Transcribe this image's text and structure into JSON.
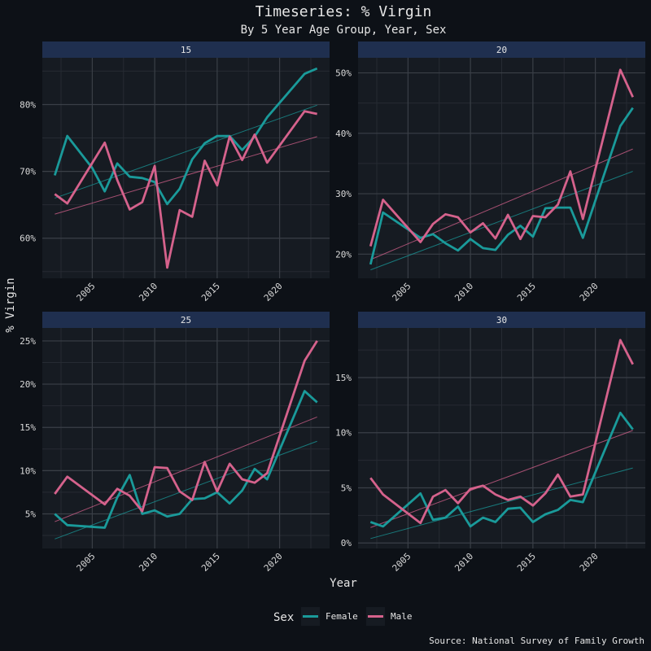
{
  "title": "Timeseries: % Virgin",
  "subtitle": "By 5 Year Age Group, Year, Sex",
  "caption": "Source: National Survey of Family Growth",
  "colors": {
    "background": "#0d1117",
    "panel": "#161b22",
    "strip": "#1f2f4f",
    "grid_major": "#3a3f47",
    "grid_minor": "#262b33",
    "female": "#1a9a9a",
    "male": "#d5628c"
  },
  "legend": {
    "title": "Sex",
    "items": [
      {
        "label": "Female",
        "color": "#1a9a9a"
      },
      {
        "label": "Male",
        "color": "#d5628c"
      }
    ]
  },
  "chart_data": {
    "type": "line",
    "xlabel": "Year",
    "ylabel": "% Virgin",
    "x_ticks": [
      2005,
      2010,
      2015,
      2020
    ],
    "x_range": [
      2001,
      2024
    ],
    "trend_lines": true,
    "legend_position": "bottom",
    "panels": [
      {
        "label": "15",
        "ylim": [
          54,
          87
        ],
        "y_ticks": [
          60,
          70,
          80
        ],
        "y_tick_labels": [
          "60%",
          "70%",
          "80%"
        ],
        "series": [
          {
            "name": "Female",
            "x": [
              2002,
              2003,
              2005,
              2006,
              2007,
              2008,
              2009,
              2010,
              2011,
              2012,
              2013,
              2014,
              2015,
              2016,
              2017,
              2018,
              2019,
              2022,
              2023
            ],
            "y": [
              69.4,
              75.3,
              70.5,
              67.0,
              71.2,
              69.2,
              69.0,
              68.4,
              65.1,
              67.4,
              71.8,
              74.2,
              75.3,
              75.3,
              73.2,
              75.2,
              78.1,
              84.6,
              85.4
            ],
            "trend": [
              66.0,
              79.9
            ]
          },
          {
            "name": "Male",
            "x": [
              2002,
              2003,
              2006,
              2007,
              2008,
              2009,
              2010,
              2011,
              2012,
              2013,
              2014,
              2015,
              2016,
              2017,
              2018,
              2019,
              2022,
              2023
            ],
            "y": [
              66.6,
              65.2,
              74.3,
              68.7,
              64.3,
              65.4,
              70.8,
              55.6,
              64.2,
              63.2,
              71.6,
              67.9,
              75.2,
              71.7,
              75.5,
              71.3,
              79.0,
              78.6
            ],
            "trend": [
              63.6,
              75.2
            ]
          }
        ]
      },
      {
        "label": "20",
        "ylim": [
          16,
          52.5
        ],
        "y_ticks": [
          20,
          30,
          40,
          50
        ],
        "y_tick_labels": [
          "20%",
          "30%",
          "40%",
          "50%"
        ],
        "series": [
          {
            "name": "Female",
            "x": [
              2002,
              2003,
              2006,
              2007,
              2008,
              2009,
              2010,
              2011,
              2012,
              2013,
              2014,
              2015,
              2016,
              2017,
              2018,
              2019,
              2022,
              2023
            ],
            "y": [
              18.3,
              26.9,
              22.7,
              23.3,
              21.8,
              20.6,
              22.5,
              21.0,
              20.7,
              23.2,
              24.7,
              22.9,
              27.6,
              27.7,
              27.7,
              22.7,
              41.2,
              44.2
            ],
            "trend": [
              17.4,
              33.7
            ]
          },
          {
            "name": "Male",
            "x": [
              2002,
              2003,
              2006,
              2007,
              2008,
              2009,
              2010,
              2011,
              2012,
              2013,
              2014,
              2015,
              2016,
              2017,
              2018,
              2019,
              2022,
              2023
            ],
            "y": [
              21.3,
              29.0,
              22.0,
              25.0,
              26.6,
              26.1,
              23.6,
              25.1,
              22.6,
              26.5,
              22.5,
              26.3,
              26.1,
              28.2,
              33.7,
              25.8,
              50.5,
              46.0
            ],
            "trend": [
              19.1,
              37.4
            ]
          }
        ]
      },
      {
        "label": "25",
        "ylim": [
          1,
          26.5
        ],
        "y_ticks": [
          5,
          10,
          15,
          20,
          25
        ],
        "y_tick_labels": [
          "5%",
          "10%",
          "15%",
          "20%",
          "25%"
        ],
        "series": [
          {
            "name": "Female",
            "x": [
              2002,
              2003,
              2006,
              2007,
              2008,
              2009,
              2010,
              2011,
              2012,
              2013,
              2014,
              2015,
              2016,
              2017,
              2018,
              2019,
              2022,
              2023
            ],
            "y": [
              5.0,
              3.7,
              3.4,
              6.9,
              9.5,
              5.0,
              5.4,
              4.7,
              5.0,
              6.7,
              6.8,
              7.5,
              6.2,
              7.7,
              10.2,
              9.0,
              19.2,
              17.9
            ],
            "trend": [
              2.1,
              13.4
            ]
          },
          {
            "name": "Male",
            "x": [
              2002,
              2003,
              2006,
              2007,
              2008,
              2009,
              2010,
              2011,
              2012,
              2013,
              2014,
              2015,
              2016,
              2017,
              2018,
              2019,
              2022,
              2023
            ],
            "y": [
              7.3,
              9.3,
              6.1,
              7.9,
              7.1,
              5.3,
              10.4,
              10.3,
              7.6,
              6.6,
              11.0,
              7.6,
              10.8,
              9.0,
              8.6,
              9.7,
              22.7,
              25.0
            ],
            "trend": [
              4.1,
              16.2
            ]
          }
        ]
      },
      {
        "label": "30",
        "ylim": [
          -0.5,
          19.5
        ],
        "y_ticks": [
          0,
          5,
          10,
          15
        ],
        "y_tick_labels": [
          "0%",
          "5%",
          "10%",
          "15%"
        ],
        "series": [
          {
            "name": "Female",
            "x": [
              2002,
              2003,
              2006,
              2007,
              2008,
              2009,
              2010,
              2011,
              2012,
              2013,
              2014,
              2015,
              2016,
              2017,
              2018,
              2019,
              2022,
              2023
            ],
            "y": [
              1.9,
              1.5,
              4.5,
              2.1,
              2.3,
              3.3,
              1.5,
              2.3,
              1.9,
              3.1,
              3.2,
              1.9,
              2.6,
              3.0,
              3.9,
              3.7,
              11.8,
              10.3
            ],
            "trend": [
              0.4,
              6.8
            ]
          },
          {
            "name": "Male",
            "x": [
              2002,
              2003,
              2006,
              2007,
              2008,
              2009,
              2010,
              2011,
              2012,
              2013,
              2014,
              2015,
              2016,
              2017,
              2018,
              2019,
              2022,
              2023
            ],
            "y": [
              5.9,
              4.4,
              1.8,
              4.2,
              4.8,
              3.6,
              4.9,
              5.2,
              4.4,
              3.9,
              4.2,
              3.4,
              4.5,
              6.2,
              4.2,
              4.4,
              18.4,
              16.2
            ],
            "trend": [
              1.4,
              10.2
            ]
          }
        ]
      }
    ]
  }
}
